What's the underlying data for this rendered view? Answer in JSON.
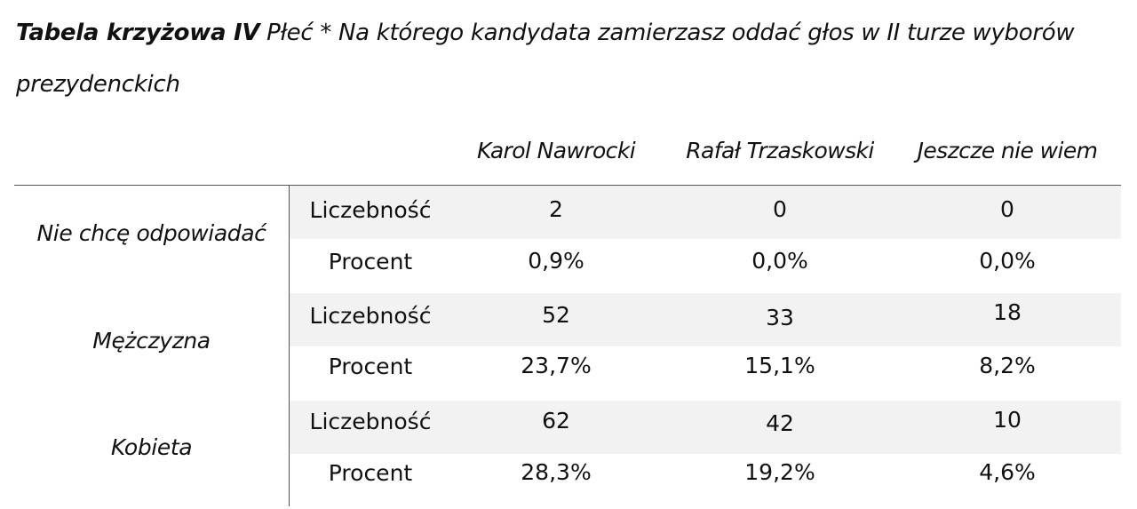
{
  "caption": {
    "bold": "Tabela krzyżowa IV",
    "text": " Płeć * Na którego kandydata zamierzasz oddać głos w II turze wyborów prezydenckich"
  },
  "columns": [
    "Karol Nawrocki",
    "Rafał Trzaskowski",
    "Jeszcze nie wiem"
  ],
  "groups": [
    {
      "label": "Nie chcę odpowiadać",
      "rows": [
        {
          "type": "Liczebność",
          "values": [
            "2",
            "0",
            "0"
          ]
        },
        {
          "type": "Procent",
          "values": [
            "0,9%",
            "0,0%",
            "0,0%"
          ]
        }
      ]
    },
    {
      "label": "Mężczyzna",
      "rows": [
        {
          "type": "Liczebność",
          "values": [
            "52",
            "33",
            "18"
          ]
        },
        {
          "type": "Procent",
          "values": [
            "23,7%",
            "15,1%",
            "8,2%"
          ]
        }
      ]
    },
    {
      "label": "Kobieta",
      "rows": [
        {
          "type": "Liczebność",
          "values": [
            "62",
            "42",
            "10"
          ]
        },
        {
          "type": "Procent",
          "values": [
            "28,3%",
            "19,2%",
            "4,6%"
          ]
        }
      ]
    }
  ]
}
